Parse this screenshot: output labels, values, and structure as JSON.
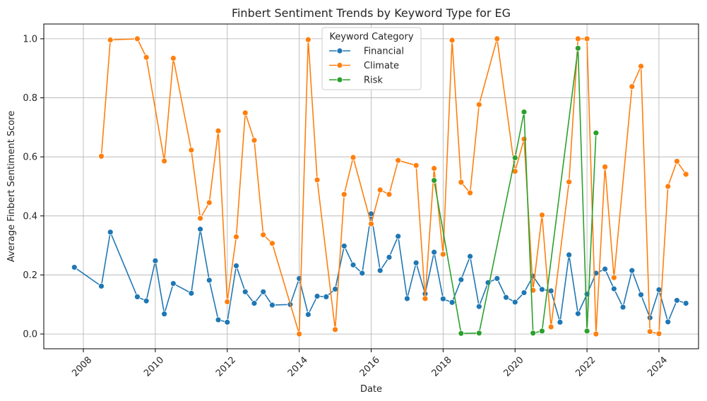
{
  "chart_data": {
    "type": "line",
    "title": "Finbert Sentiment Trends by Keyword Type for EG",
    "xlabel": "Date",
    "ylabel": "Average Finbert Sentiment Score",
    "xlim": [
      2006.9,
      2025.1
    ],
    "ylim": [
      -0.05,
      1.05
    ],
    "x_ticks": [
      2008,
      2010,
      2012,
      2014,
      2016,
      2018,
      2020,
      2022,
      2024
    ],
    "x_tick_labels": [
      "2008",
      "2010",
      "2012",
      "2014",
      "2016",
      "2018",
      "2020",
      "2022",
      "2024"
    ],
    "y_ticks": [
      0.0,
      0.2,
      0.4,
      0.6,
      0.8,
      1.0
    ],
    "y_tick_labels": [
      "0.0",
      "0.2",
      "0.4",
      "0.6",
      "0.8",
      "1.0"
    ],
    "grid": true,
    "legend": {
      "title": "Keyword Category",
      "placement": "upper-center"
    },
    "series": [
      {
        "name": "Financial",
        "color": "#1f77b4",
        "points": [
          [
            2007.75,
            0.226
          ],
          [
            2008.5,
            0.162
          ],
          [
            2008.75,
            0.345
          ],
          [
            2009.5,
            0.126
          ],
          [
            2009.75,
            0.112
          ],
          [
            2010.0,
            0.248
          ],
          [
            2010.25,
            0.068
          ],
          [
            2010.5,
            0.171
          ],
          [
            2011.0,
            0.138
          ],
          [
            2011.25,
            0.355
          ],
          [
            2011.5,
            0.182
          ],
          [
            2011.75,
            0.048
          ],
          [
            2012.0,
            0.04
          ],
          [
            2012.25,
            0.231
          ],
          [
            2012.5,
            0.143
          ],
          [
            2012.75,
            0.104
          ],
          [
            2013.0,
            0.143
          ],
          [
            2013.25,
            0.098
          ],
          [
            2013.75,
            0.1
          ],
          [
            2014.0,
            0.188
          ],
          [
            2014.25,
            0.066
          ],
          [
            2014.5,
            0.128
          ],
          [
            2014.75,
            0.126
          ],
          [
            2015.0,
            0.152
          ],
          [
            2015.25,
            0.298
          ],
          [
            2015.5,
            0.234
          ],
          [
            2015.75,
            0.206
          ],
          [
            2016.0,
            0.407
          ],
          [
            2016.25,
            0.215
          ],
          [
            2016.5,
            0.26
          ],
          [
            2016.75,
            0.331
          ],
          [
            2017.0,
            0.12
          ],
          [
            2017.25,
            0.241
          ],
          [
            2017.5,
            0.136
          ],
          [
            2017.75,
            0.277
          ],
          [
            2018.0,
            0.119
          ],
          [
            2018.25,
            0.107
          ],
          [
            2018.5,
            0.184
          ],
          [
            2018.75,
            0.263
          ],
          [
            2019.0,
            0.093
          ],
          [
            2019.25,
            0.174
          ],
          [
            2019.5,
            0.188
          ],
          [
            2019.75,
            0.124
          ],
          [
            2020.0,
            0.108
          ],
          [
            2020.25,
            0.14
          ],
          [
            2020.5,
            0.196
          ],
          [
            2020.75,
            0.151
          ],
          [
            2021.0,
            0.146
          ],
          [
            2021.25,
            0.04
          ],
          [
            2021.5,
            0.268
          ],
          [
            2021.75,
            0.069
          ],
          [
            2022.0,
            0.135
          ],
          [
            2022.25,
            0.206
          ],
          [
            2022.5,
            0.22
          ],
          [
            2022.75,
            0.153
          ],
          [
            2023.0,
            0.091
          ],
          [
            2023.25,
            0.215
          ],
          [
            2023.5,
            0.133
          ],
          [
            2023.75,
            0.055
          ],
          [
            2024.0,
            0.15
          ],
          [
            2024.25,
            0.041
          ],
          [
            2024.5,
            0.114
          ],
          [
            2024.75,
            0.104
          ]
        ]
      },
      {
        "name": "Climate",
        "color": "#ff7f0e",
        "points": [
          [
            2008.5,
            0.602
          ],
          [
            2008.75,
            0.996
          ],
          [
            2009.5,
            1.0
          ],
          [
            2009.75,
            0.937
          ],
          [
            2010.25,
            0.586
          ],
          [
            2010.5,
            0.934
          ],
          [
            2011.0,
            0.623
          ],
          [
            2011.25,
            0.392
          ],
          [
            2011.5,
            0.445
          ],
          [
            2011.75,
            0.688
          ],
          [
            2012.0,
            0.109
          ],
          [
            2012.25,
            0.329
          ],
          [
            2012.5,
            0.749
          ],
          [
            2012.75,
            0.656
          ],
          [
            2013.0,
            0.336
          ],
          [
            2013.25,
            0.307
          ],
          [
            2014.0,
            0.0
          ],
          [
            2014.25,
            0.997
          ],
          [
            2014.5,
            0.522
          ],
          [
            2015.0,
            0.015
          ],
          [
            2015.25,
            0.473
          ],
          [
            2015.5,
            0.598
          ],
          [
            2016.0,
            0.373
          ],
          [
            2016.25,
            0.488
          ],
          [
            2016.5,
            0.473
          ],
          [
            2016.75,
            0.588
          ],
          [
            2017.25,
            0.571
          ],
          [
            2017.5,
            0.12
          ],
          [
            2017.75,
            0.561
          ],
          [
            2018.0,
            0.27
          ],
          [
            2018.25,
            0.995
          ],
          [
            2018.5,
            0.514
          ],
          [
            2018.75,
            0.478
          ],
          [
            2019.0,
            0.777
          ],
          [
            2019.5,
            1.0
          ],
          [
            2020.0,
            0.551
          ],
          [
            2020.25,
            0.66
          ],
          [
            2020.5,
            0.148
          ],
          [
            2020.75,
            0.403
          ],
          [
            2021.0,
            0.024
          ],
          [
            2021.5,
            0.515
          ],
          [
            2021.75,
            1.0
          ],
          [
            2022.0,
            1.0
          ],
          [
            2022.25,
            0.0
          ],
          [
            2022.5,
            0.566
          ],
          [
            2022.75,
            0.191
          ],
          [
            2023.25,
            0.838
          ],
          [
            2023.5,
            0.907
          ],
          [
            2023.75,
            0.008
          ],
          [
            2024.0,
            0.001
          ],
          [
            2024.25,
            0.5
          ],
          [
            2024.5,
            0.585
          ],
          [
            2024.75,
            0.541
          ]
        ]
      },
      {
        "name": "Risk",
        "color": "#2ca02c",
        "points": [
          [
            2017.75,
            0.52
          ],
          [
            2018.5,
            0.002
          ],
          [
            2019.0,
            0.003
          ],
          [
            2020.0,
            0.597
          ],
          [
            2020.25,
            0.752
          ],
          [
            2020.5,
            0.003
          ],
          [
            2020.75,
            0.01
          ],
          [
            2021.75,
            0.968
          ],
          [
            2022.0,
            0.01
          ],
          [
            2022.25,
            0.681
          ]
        ]
      }
    ]
  }
}
